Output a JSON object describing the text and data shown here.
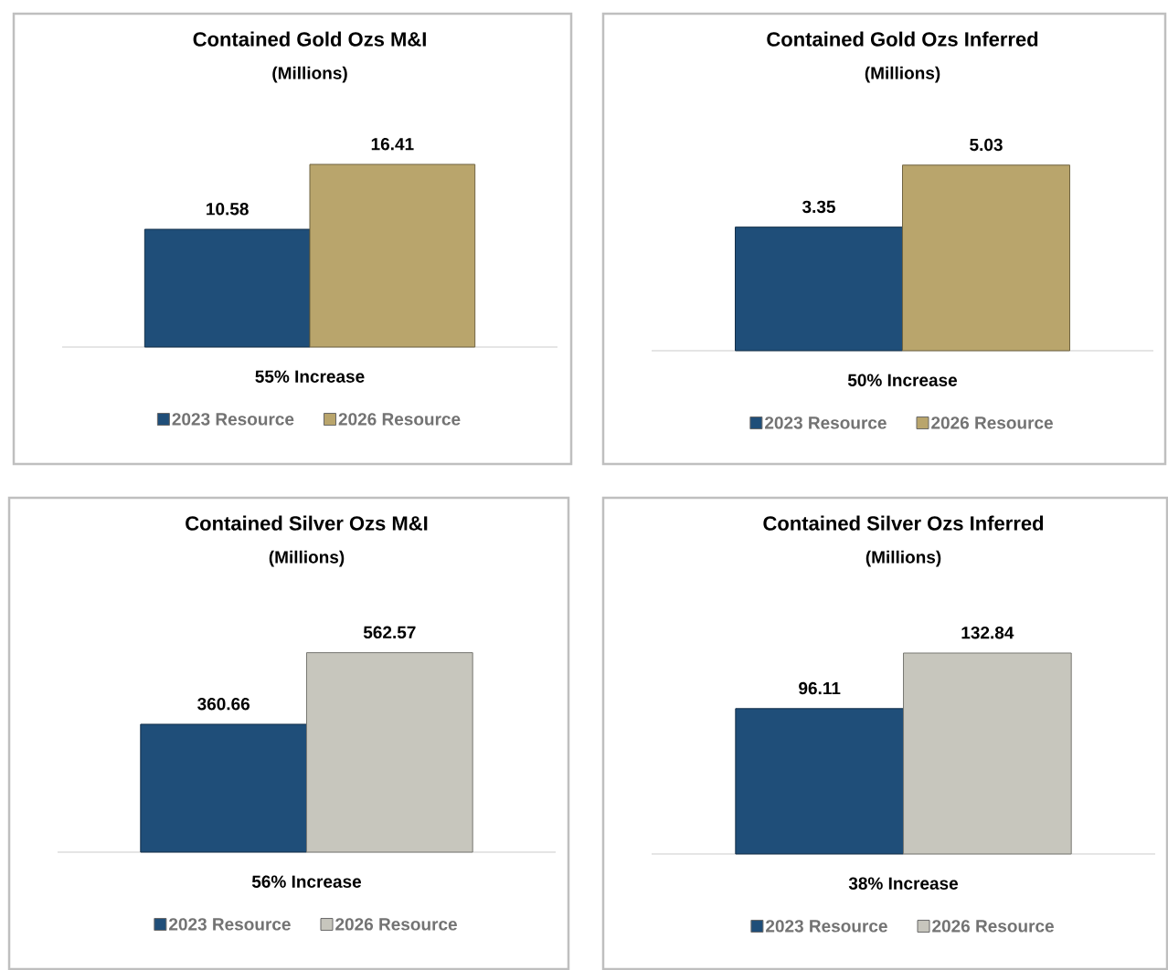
{
  "chart_data": [
    {
      "type": "bar",
      "title": "Contained Gold Ozs M&I",
      "subtitle": "(Millions)",
      "xlabel": "55% Increase",
      "categories": [
        null
      ],
      "data_labels": true,
      "legend": "bottom",
      "series": [
        {
          "name": "2023 Resource",
          "color": "#1f4e79",
          "values": [
            10.58
          ]
        },
        {
          "name": "2026 Resource",
          "color": "#b9a56c",
          "values": [
            16.41
          ]
        }
      ]
    },
    {
      "type": "bar",
      "title": "Contained Gold Ozs Inferred",
      "subtitle": "(Millions)",
      "xlabel": "50% Increase",
      "categories": [
        null
      ],
      "data_labels": true,
      "legend": "bottom",
      "series": [
        {
          "name": "2023 Resource",
          "color": "#1f4e79",
          "values": [
            3.35
          ]
        },
        {
          "name": "2026 Resource",
          "color": "#b9a56c",
          "values": [
            5.03
          ]
        }
      ]
    },
    {
      "type": "bar",
      "title": "Contained Silver Ozs M&I",
      "subtitle": "(Millions)",
      "xlabel": "56% Increase",
      "categories": [
        null
      ],
      "data_labels": true,
      "legend": "bottom",
      "series": [
        {
          "name": "2023 Resource",
          "color": "#1f4e79",
          "values": [
            360.66
          ]
        },
        {
          "name": "2026 Resource",
          "color": "#c7c6bd",
          "values": [
            562.57
          ]
        }
      ]
    },
    {
      "type": "bar",
      "title": "Contained Silver Ozs Inferred",
      "subtitle": "(Millions)",
      "xlabel": "38% Increase",
      "categories": [
        null
      ],
      "data_labels": true,
      "legend": "bottom",
      "series": [
        {
          "name": "2023 Resource",
          "color": "#1f4e79",
          "values": [
            96.11
          ]
        },
        {
          "name": "2026 Resource",
          "color": "#c7c6bd",
          "values": [
            132.84
          ]
        }
      ]
    }
  ]
}
